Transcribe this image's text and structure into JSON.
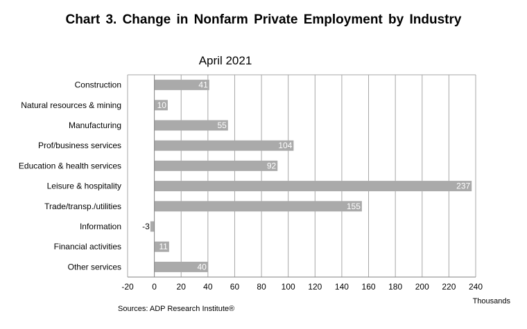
{
  "title": "Chart 3. Change  in Nonfarm  Private Employment  by Industry",
  "source": "Sources: ADP Research Institute®",
  "chart_data": {
    "type": "bar",
    "orientation": "horizontal",
    "subtitle": "April 2021",
    "xlabel": "Thousands",
    "categories": [
      "Construction",
      "Natural resources & mining",
      "Manufacturing",
      "Prof/business services",
      "Education & health services",
      "Leisure & hospitality",
      "Trade/transp./utilities",
      "Information",
      "Financial activities",
      "Other services"
    ],
    "values": [
      41,
      10,
      55,
      104,
      92,
      237,
      155,
      -3,
      11,
      40
    ],
    "data_labels": [
      "41",
      "10",
      "55",
      "104",
      "92",
      "237",
      "155",
      "-3",
      "11",
      "40"
    ],
    "xlim": [
      -20,
      240
    ],
    "xticks": [
      -20,
      0,
      20,
      40,
      60,
      80,
      100,
      120,
      140,
      160,
      180,
      200,
      220,
      240
    ],
    "grid": true,
    "colors": {
      "bar": "#aaaaaa",
      "grid": "#a6a6a6",
      "label_inside": "#ffffff"
    }
  }
}
